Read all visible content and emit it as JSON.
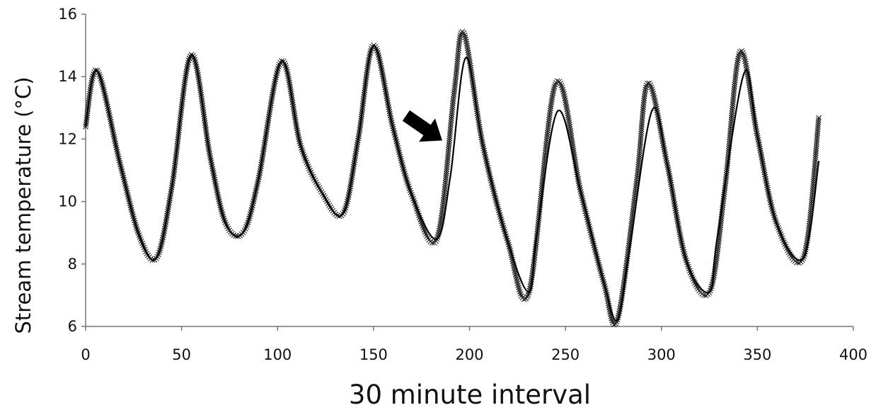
{
  "chart_data": {
    "type": "line",
    "title": "",
    "xlabel": "30 minute interval",
    "ylabel": "Stream temperature (°C)",
    "xlim": [
      0,
      400
    ],
    "ylim": [
      6,
      16
    ],
    "x_ticks": [
      0,
      50,
      100,
      150,
      200,
      250,
      300,
      350,
      400
    ],
    "y_ticks": [
      6,
      8,
      10,
      12,
      14,
      16
    ],
    "grid": false,
    "legend": "none",
    "series": [
      {
        "marker": "x",
        "x": [
          0,
          6,
          18,
          28,
          37,
          45,
          55,
          65,
          73,
          82,
          90,
          102,
          112,
          123,
          134,
          142,
          150,
          160,
          170,
          183,
          192,
          197,
          207,
          220,
          231,
          245,
          258,
          270,
          277,
          287,
          293,
          303,
          313,
          325,
          333,
          341,
          350,
          360,
          374,
          382
        ],
        "y": [
          12.4,
          14.2,
          11.2,
          8.9,
          8.2,
          10.5,
          14.7,
          11.4,
          9.3,
          9.0,
          10.7,
          14.5,
          11.8,
          10.3,
          9.6,
          12.0,
          15.0,
          12.4,
          10.2,
          8.8,
          13.5,
          15.4,
          11.8,
          8.7,
          7.1,
          13.8,
          10.3,
          7.4,
          6.2,
          10.6,
          13.8,
          11.2,
          8.1,
          7.1,
          10.4,
          14.8,
          12.1,
          9.3,
          8.2,
          12.7
        ]
      },
      {
        "marker": "none",
        "x": [
          0,
          6,
          18,
          28,
          37,
          45,
          55,
          65,
          73,
          82,
          90,
          102,
          112,
          123,
          134,
          142,
          150,
          160,
          170,
          183,
          190,
          198,
          207,
          220,
          231,
          235,
          246,
          258,
          270,
          277,
          283,
          295,
          303,
          313,
          325,
          329,
          343,
          350,
          360,
          374,
          382
        ],
        "y": [
          12.4,
          14.2,
          11.2,
          8.9,
          8.2,
          10.5,
          14.7,
          11.4,
          9.3,
          9.0,
          10.7,
          14.5,
          11.8,
          10.3,
          9.6,
          12.0,
          15.0,
          12.4,
          10.2,
          8.8,
          10.8,
          14.6,
          11.8,
          8.7,
          7.1,
          8.9,
          12.9,
          10.3,
          7.4,
          6.2,
          8.3,
          12.9,
          11.2,
          8.1,
          7.1,
          8.8,
          14.1,
          12.1,
          9.3,
          8.2,
          11.3
        ]
      }
    ],
    "annotations": [
      {
        "type": "arrow",
        "shape": "block",
        "points_toward": "down-right",
        "target_x": 188,
        "target_y": 12.0
      }
    ]
  }
}
